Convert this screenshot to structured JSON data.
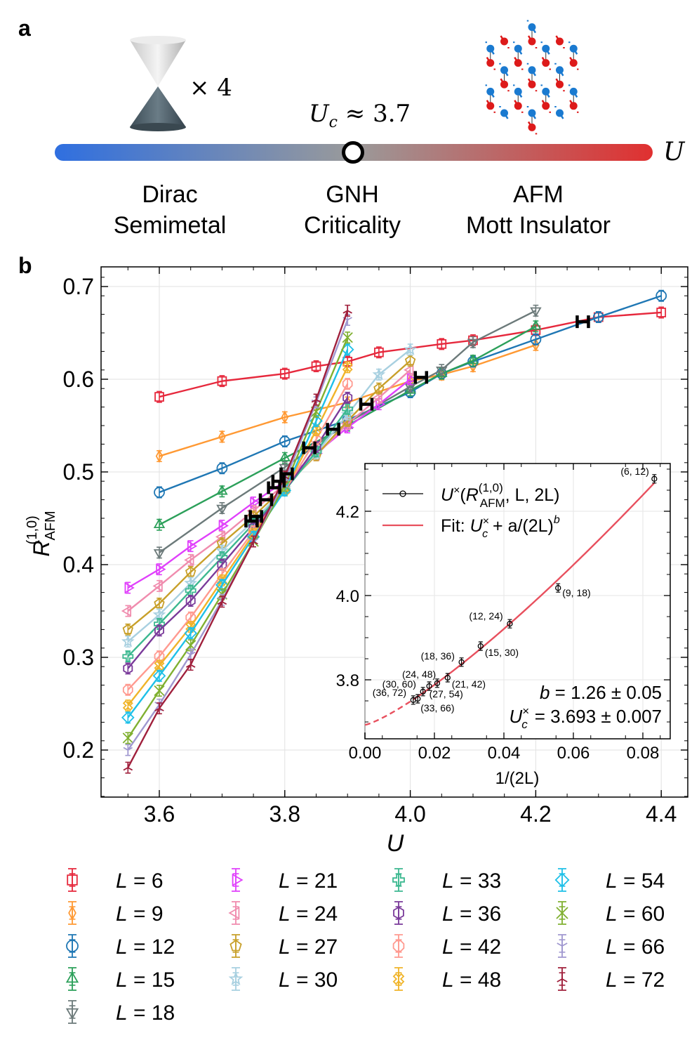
{
  "panel_a": {
    "letter": "a",
    "cone_multiplier": "× 4",
    "critical_label": "U",
    "critical_sub": "c",
    "critical_value": "≈ 3.7",
    "axis_label": "U",
    "bar_colors": {
      "left": "#2f6fe0",
      "middle": "#9a9a9a",
      "right": "#e03030"
    },
    "phases": [
      {
        "line1": "Dirac",
        "line2": "Semimetal"
      },
      {
        "line1": "GNH",
        "line2": "Criticality"
      },
      {
        "line1": "AFM",
        "line2": "Mott Insulator"
      }
    ],
    "lattice_colors": {
      "sublattice_a": "#1a7ad0",
      "sublattice_b": "#dd1a1a"
    }
  },
  "panel_b": {
    "letter": "b"
  },
  "chart_data": [
    {
      "type": "scatter",
      "xlabel": "U",
      "ylabel": "R_AFM^(1,0)",
      "ylabel_main": "R",
      "ylabel_sub": "AFM",
      "ylabel_sup": "(1,0)",
      "xlim": [
        3.507,
        4.442
      ],
      "ylim": [
        0.149,
        0.721
      ],
      "xticks": [
        "3.6",
        "3.8",
        "4.0",
        "4.2",
        "4.4"
      ],
      "yticks": [
        "0.2",
        "0.3",
        "0.4",
        "0.5",
        "0.6",
        "0.7"
      ],
      "grid": true,
      "legend_placement": "bottom",
      "series": [
        {
          "name": "L = 6",
          "L": "6",
          "color": "#e6283c",
          "marker": "square",
          "U": [
            3.6,
            3.7,
            3.8,
            3.85,
            3.9,
            3.95,
            4.05,
            4.1,
            4.2,
            4.3,
            4.4
          ],
          "R": [
            0.581,
            0.598,
            0.606,
            0.614,
            0.619,
            0.629,
            0.638,
            0.642,
            0.653,
            0.667,
            0.672
          ]
        },
        {
          "name": "L = 9",
          "L": "9",
          "color": "#ff9933",
          "marker": "thin_diamond",
          "U": [
            3.6,
            3.7,
            3.8,
            3.9,
            4.0,
            4.05,
            4.1,
            4.2
          ],
          "R": [
            0.517,
            0.538,
            0.559,
            0.575,
            0.598,
            0.605,
            0.614,
            0.637
          ]
        },
        {
          "name": "L = 12",
          "L": "12",
          "color": "#1f77b4",
          "marker": "circle",
          "U": [
            3.6,
            3.7,
            3.8,
            3.9,
            4.0,
            4.05,
            4.1,
            4.2,
            4.3,
            4.4
          ],
          "R": [
            0.478,
            0.504,
            0.533,
            0.556,
            0.586,
            0.606,
            0.619,
            0.643,
            0.667,
            0.69
          ]
        },
        {
          "name": "L = 15",
          "L": "15",
          "color": "#2ca05a",
          "marker": "triangle_up",
          "U": [
            3.6,
            3.7,
            3.8,
            3.9,
            4.0,
            4.05,
            4.1,
            4.2
          ],
          "R": [
            0.443,
            0.479,
            0.515,
            0.55,
            0.588,
            0.606,
            0.62,
            0.657
          ]
        },
        {
          "name": "L = 18",
          "L": "18",
          "color": "#6c7a7a",
          "marker": "triangle_down",
          "U": [
            3.6,
            3.7,
            3.8,
            3.9,
            4.0,
            4.05,
            4.1,
            4.2
          ],
          "R": [
            0.413,
            0.461,
            0.505,
            0.553,
            0.592,
            0.61,
            0.64,
            0.674
          ]
        },
        {
          "name": "L = 21",
          "L": "21",
          "color": "#e040fb",
          "marker": "triangle_right",
          "U": [
            3.55,
            3.6,
            3.65,
            3.7,
            3.75,
            3.8,
            3.85,
            3.9,
            3.95,
            4.0
          ],
          "R": [
            0.375,
            0.395,
            0.42,
            0.442,
            0.467,
            0.49,
            0.52,
            0.548,
            0.573,
            0.6
          ]
        },
        {
          "name": "L = 24",
          "L": "24",
          "color": "#f08cae",
          "marker": "triangle_left",
          "U": [
            3.55,
            3.6,
            3.65,
            3.7,
            3.75,
            3.8,
            3.85,
            3.9,
            3.95,
            4.0
          ],
          "R": [
            0.35,
            0.377,
            0.405,
            0.43,
            0.458,
            0.487,
            0.518,
            0.552,
            0.58,
            0.61
          ]
        },
        {
          "name": "L = 27",
          "L": "27",
          "color": "#c8a02a",
          "marker": "pentagon",
          "U": [
            3.55,
            3.6,
            3.65,
            3.7,
            3.75,
            3.8,
            3.85,
            3.9,
            3.95,
            4.0
          ],
          "R": [
            0.33,
            0.358,
            0.392,
            0.423,
            0.452,
            0.484,
            0.518,
            0.555,
            0.59,
            0.62
          ]
        },
        {
          "name": "L = 30",
          "L": "30",
          "color": "#a8d0e0",
          "marker": "star",
          "U": [
            3.55,
            3.6,
            3.65,
            3.7,
            3.75,
            3.8,
            3.85,
            3.9,
            3.95,
            4.0
          ],
          "R": [
            0.317,
            0.346,
            0.38,
            0.415,
            0.447,
            0.482,
            0.52,
            0.562,
            0.605,
            0.632
          ]
        },
        {
          "name": "L = 33",
          "L": "33",
          "color": "#3cb890",
          "marker": "plus_filled",
          "U": [
            3.55,
            3.6,
            3.65,
            3.7,
            3.75,
            3.8,
            3.85,
            3.9
          ],
          "R": [
            0.301,
            0.336,
            0.372,
            0.408,
            0.444,
            0.48,
            0.522,
            0.568
          ]
        },
        {
          "name": "L = 36",
          "L": "36",
          "color": "#7a3a9a",
          "marker": "hexagon",
          "U": [
            3.55,
            3.6,
            3.65,
            3.7,
            3.75,
            3.8,
            3.85,
            3.9
          ],
          "R": [
            0.288,
            0.329,
            0.361,
            0.4,
            0.44,
            0.48,
            0.527,
            0.58
          ]
        },
        {
          "name": "L = 42",
          "L": "42",
          "color": "#ff9a90",
          "marker": "octagon",
          "U": [
            3.55,
            3.6,
            3.65,
            3.7,
            3.75,
            3.8,
            3.85,
            3.9
          ],
          "R": [
            0.265,
            0.301,
            0.343,
            0.39,
            0.436,
            0.48,
            0.535,
            0.595
          ]
        },
        {
          "name": "L = 48",
          "L": "48",
          "color": "#f0b429",
          "marker": "x_filled",
          "U": [
            3.55,
            3.6,
            3.65,
            3.7,
            3.75,
            3.8,
            3.85,
            3.9
          ],
          "R": [
            0.248,
            0.291,
            0.333,
            0.383,
            0.433,
            0.48,
            0.545,
            0.613
          ]
        },
        {
          "name": "L = 54",
          "L": "54",
          "color": "#1ec0e8",
          "marker": "diamond",
          "U": [
            3.55,
            3.6,
            3.65,
            3.7,
            3.75,
            3.8,
            3.85,
            3.9
          ],
          "R": [
            0.235,
            0.28,
            0.326,
            0.378,
            0.43,
            0.48,
            0.555,
            0.632
          ]
        },
        {
          "name": "L = 60",
          "L": "60",
          "color": "#80b030",
          "marker": "x",
          "U": [
            3.55,
            3.6,
            3.65,
            3.7,
            3.75,
            3.8,
            3.85,
            3.9
          ],
          "R": [
            0.213,
            0.264,
            0.313,
            0.368,
            0.425,
            0.485,
            0.565,
            0.645
          ]
        },
        {
          "name": "L = 66",
          "L": "66",
          "color": "#a098d0",
          "marker": "tri_down",
          "U": [
            3.55,
            3.6,
            3.65,
            3.7,
            3.75,
            3.8,
            3.85,
            3.9
          ],
          "R": [
            0.2,
            0.249,
            0.303,
            0.362,
            0.425,
            0.49,
            0.575,
            0.664
          ]
        },
        {
          "name": "L = 72",
          "L": "72",
          "color": "#a0203c",
          "marker": "tri_up",
          "U": [
            3.55,
            3.6,
            3.65,
            3.7,
            3.75,
            3.8,
            3.85,
            3.9
          ],
          "R": [
            0.181,
            0.245,
            0.292,
            0.36,
            0.425,
            0.495,
            0.578,
            0.674
          ]
        }
      ],
      "crossings": {
        "color": "#000000",
        "U": [
          4.275,
          4.017,
          3.93,
          3.877,
          3.839,
          3.803,
          3.79,
          3.783,
          3.77,
          3.754,
          3.747
        ],
        "R": [
          0.662,
          0.602,
          0.573,
          0.546,
          0.526,
          0.498,
          0.49,
          0.483,
          0.47,
          0.452,
          0.447
        ]
      }
    },
    {
      "type": "scatter",
      "xlabel": "1/(2L)",
      "ylabel": "",
      "xlim": [
        0.0,
        0.0876
      ],
      "ylim": [
        3.66,
        4.313
      ],
      "xticks": [
        "0.00",
        "0.02",
        "0.04",
        "0.06",
        "0.08"
      ],
      "yticks": [
        "3.8",
        "4.0",
        "4.2"
      ],
      "grid": true,
      "legend_placement": "top-left",
      "legend": {
        "points": {
          "U": "U",
          "sup": "×",
          "open": "(",
          "R": "R",
          "R_sub": "AFM",
          "R_sup": "(1,0)",
          "rest": ", L, 2L)"
        },
        "fit": {
          "prefix": "Fit: ",
          "U": "U",
          "sub": "c",
          "sup": "×",
          "rest": " + a/(2L)",
          "exp": "b"
        }
      },
      "fit_color": "#e8505e",
      "points": [
        {
          "label": "(6, 12)",
          "x": 0.0833,
          "y": 4.277
        },
        {
          "label": "(9, 18)",
          "x": 0.0556,
          "y": 4.018
        },
        {
          "label": "(12, 24)",
          "x": 0.0417,
          "y": 3.933
        },
        {
          "label": "(15, 30)",
          "x": 0.0333,
          "y": 3.88
        },
        {
          "label": "(18, 36)",
          "x": 0.0278,
          "y": 3.842
        },
        {
          "label": "(21, 42)",
          "x": 0.0238,
          "y": 3.805
        },
        {
          "label": "(24, 48)",
          "x": 0.0208,
          "y": 3.792
        },
        {
          "label": "(27, 54)",
          "x": 0.0185,
          "y": 3.785
        },
        {
          "label": "(30, 60)",
          "x": 0.0167,
          "y": 3.772
        },
        {
          "label": "(33, 66)",
          "x": 0.0152,
          "y": 3.755
        },
        {
          "label": "(36, 72)",
          "x": 0.0139,
          "y": 3.752
        }
      ],
      "annotations": {
        "b_label": "b",
        "b_value": "= 1.26 ± 0.05",
        "b": 1.26,
        "uc_U": "U",
        "uc_sub": "c",
        "uc_sup": "×",
        "uc_value": "= 3.693 ± 0.007",
        "uc": 3.693
      }
    }
  ]
}
